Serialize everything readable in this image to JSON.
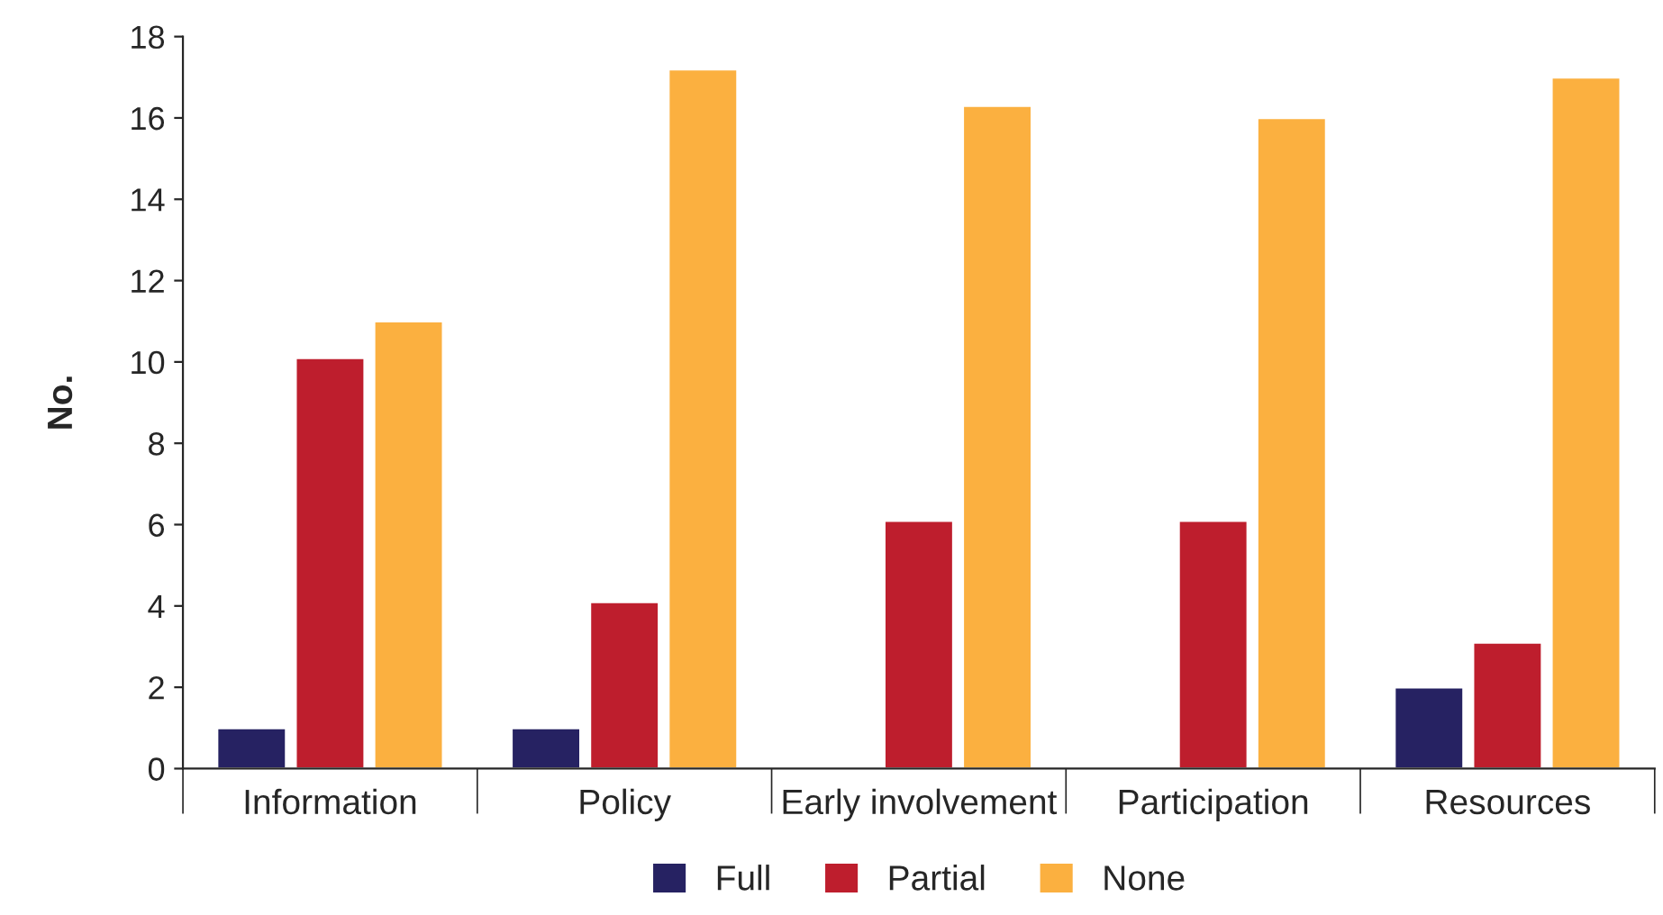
{
  "chart_data": {
    "type": "bar",
    "ylabel": "No.",
    "categories": [
      "Information",
      "Policy",
      "Early involvement",
      "Participation",
      "Resources"
    ],
    "series": [
      {
        "name": "Full",
        "color": "#262262",
        "values": [
          1,
          1,
          null,
          null,
          2
        ]
      },
      {
        "name": "Partial",
        "color": "#be1e2d",
        "values": [
          10.1,
          4.1,
          6.1,
          6.1,
          3.1
        ]
      },
      {
        "name": "None",
        "color": "#fbb040",
        "values": [
          11,
          17.2,
          16.3,
          16,
          17
        ]
      }
    ],
    "ylim": [
      0,
      18
    ],
    "yticks": [
      0,
      2,
      4,
      6,
      8,
      10,
      12,
      14,
      16,
      18
    ],
    "grid": false,
    "legend": "bottom"
  }
}
